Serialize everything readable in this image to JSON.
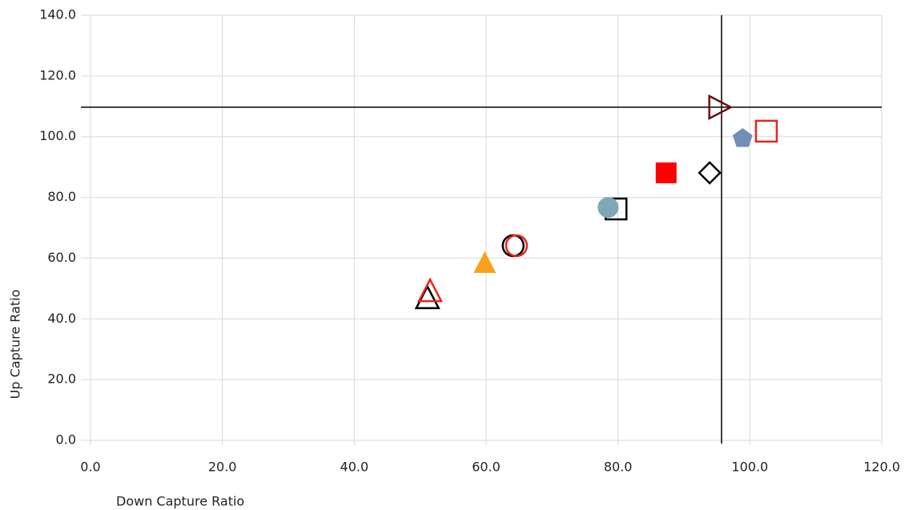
{
  "chart_data": {
    "type": "scatter",
    "xlabel": "Down Capture Ratio",
    "ylabel": "Up Capture Ratio",
    "xlim": [
      0,
      120
    ],
    "ylim": [
      0,
      140
    ],
    "xticks": [
      {
        "value": 0,
        "label": "0.0"
      },
      {
        "value": 20,
        "label": "20.0"
      },
      {
        "value": 40,
        "label": "40.0"
      },
      {
        "value": 60,
        "label": "60.0"
      },
      {
        "value": 80,
        "label": "80.0"
      },
      {
        "value": 100,
        "label": "100.0"
      },
      {
        "value": 120,
        "label": "120.0"
      }
    ],
    "yticks": [
      {
        "value": 0,
        "label": "0.0"
      },
      {
        "value": 20,
        "label": "20.0"
      },
      {
        "value": 40,
        "label": "40.0"
      },
      {
        "value": 60,
        "label": "60.0"
      },
      {
        "value": 80,
        "label": "80.0"
      },
      {
        "value": 100,
        "label": "100.0"
      },
      {
        "value": 120,
        "label": "120.0"
      },
      {
        "value": 140,
        "label": "140.0"
      }
    ],
    "grid": true,
    "reference_x": 95.7,
    "reference_y": 109.7,
    "series": [
      {
        "color": "#000000",
        "marker": "triangle-up",
        "filled": false,
        "x": [
          51.1
        ],
        "y": [
          46.7
        ]
      },
      {
        "color": "#e8251a",
        "marker": "triangle-up",
        "filled": false,
        "x": [
          51.5
        ],
        "y": [
          49.0
        ]
      },
      {
        "color": "#f9a11b",
        "marker": "triangle-up",
        "filled": true,
        "x": [
          59.8
        ],
        "y": [
          58.3
        ]
      },
      {
        "color": "#000000",
        "marker": "circle",
        "filled": false,
        "x": [
          64.1
        ],
        "y": [
          64.1
        ]
      },
      {
        "color": "#e8251a",
        "marker": "circle",
        "filled": false,
        "x": [
          64.6
        ],
        "y": [
          64.1
        ]
      },
      {
        "color": "#000000",
        "marker": "square",
        "filled": false,
        "x": [
          79.7
        ],
        "y": [
          76.2
        ]
      },
      {
        "color": "#7fa7b8",
        "marker": "circle",
        "filled": true,
        "x": [
          78.5
        ],
        "y": [
          76.7
        ]
      },
      {
        "color": "#ff0000",
        "marker": "square",
        "filled": true,
        "x": [
          87.3
        ],
        "y": [
          88.1
        ]
      },
      {
        "color": "#000000",
        "marker": "diamond",
        "filled": false,
        "x": [
          93.9
        ],
        "y": [
          88.1
        ]
      },
      {
        "color": "#6f8fb8",
        "marker": "pentagon",
        "filled": true,
        "x": [
          98.9
        ],
        "y": [
          99.4
        ]
      },
      {
        "color": "#e8251a",
        "marker": "square",
        "filled": false,
        "x": [
          102.5
        ],
        "y": [
          101.8
        ]
      },
      {
        "color": "#6b0f0f",
        "marker": "triangle-right",
        "filled": false,
        "x": [
          95.3
        ],
        "y": [
          109.7
        ]
      }
    ]
  }
}
